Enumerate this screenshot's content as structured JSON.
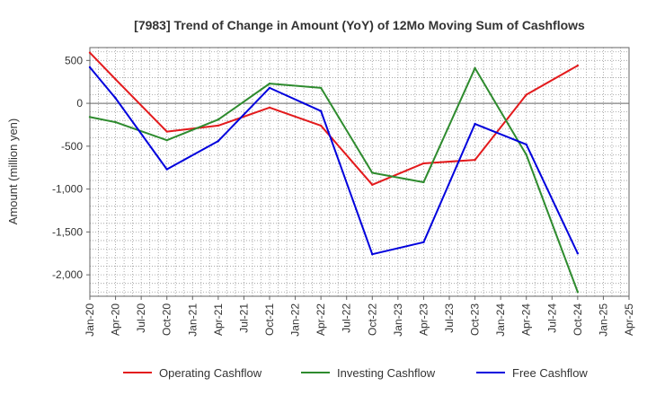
{
  "chart_data": {
    "type": "line",
    "title": "[7983]  Trend of Change in Amount (YoY) of 12Mo Moving Sum of Cashflows",
    "xlabel": "",
    "ylabel": "Amount (million yen)",
    "ylim": [
      -2250,
      650
    ],
    "yticks": [
      500,
      0,
      -500,
      -1000,
      -1500,
      -2000
    ],
    "ytick_labels": [
      "500",
      "0",
      "-500",
      "-1,000",
      "-1,500",
      "-2,000"
    ],
    "categories": [
      "Jan-20",
      "Apr-20",
      "Jul-20",
      "Oct-20",
      "Jan-21",
      "Apr-21",
      "Jul-21",
      "Oct-21",
      "Jan-22",
      "Apr-22",
      "Jul-22",
      "Oct-22",
      "Jan-23",
      "Apr-23",
      "Jul-23",
      "Oct-23",
      "Jan-24",
      "Apr-24",
      "Jul-24",
      "Oct-24",
      "Jan-25",
      "Apr-25"
    ],
    "grid": true,
    "legend_position": "bottom",
    "series": [
      {
        "name": "Operating Cashflow",
        "color": "#e31a1c",
        "values": [
          590,
          280,
          null,
          -330,
          null,
          -260,
          null,
          -50,
          null,
          -260,
          null,
          -950,
          null,
          -700,
          null,
          -660,
          null,
          100,
          null,
          440,
          null,
          null
        ]
      },
      {
        "name": "Investing Cashflow",
        "color": "#2e8b2e",
        "values": [
          -160,
          -220,
          null,
          -430,
          null,
          -190,
          null,
          230,
          null,
          180,
          null,
          -810,
          null,
          -920,
          null,
          410,
          null,
          -600,
          null,
          -2200,
          null,
          null
        ]
      },
      {
        "name": "Free Cashflow",
        "color": "#0000dd",
        "values": [
          420,
          60,
          null,
          -770,
          null,
          -440,
          null,
          180,
          null,
          -90,
          null,
          -1760,
          null,
          -1620,
          null,
          -240,
          null,
          -480,
          null,
          -1750,
          null,
          null
        ]
      }
    ]
  }
}
